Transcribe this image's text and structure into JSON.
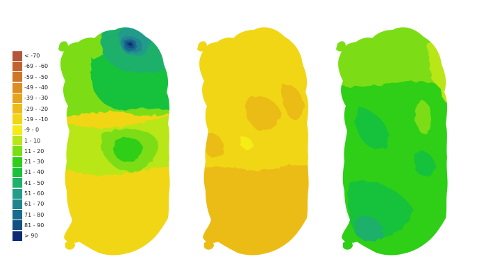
{
  "legend": {
    "items": [
      {
        "label": "< -70",
        "color": "#b5553a"
      },
      {
        "label": "-69 - -60",
        "color": "#c2622c"
      },
      {
        "label": "-59 - -50",
        "color": "#cf7628"
      },
      {
        "label": "-49 - -40",
        "color": "#dc8e22"
      },
      {
        "label": "-39 - -30",
        "color": "#e5a41d"
      },
      {
        "label": "-29 - -20",
        "color": "#ecbc19"
      },
      {
        "label": "-19 - -10",
        "color": "#f1d617"
      },
      {
        "label": "-9 - 0",
        "color": "#f6ec14"
      },
      {
        "label": "1 - 10",
        "color": "#b9e616"
      },
      {
        "label": "11 - 20",
        "color": "#7bdd13"
      },
      {
        "label": "21 - 30",
        "color": "#2fcf18"
      },
      {
        "label": "31 - 40",
        "color": "#19c23a"
      },
      {
        "label": "41 - 50",
        "color": "#1fb06a"
      },
      {
        "label": "51 - 60",
        "color": "#239c8a"
      },
      {
        "label": "61 - 70",
        "color": "#20858f"
      },
      {
        "label": "71 - 80",
        "color": "#176b8c"
      },
      {
        "label": "81 - 90",
        "color": "#125083"
      },
      {
        "label": "> 90",
        "color": "#0d2c75"
      }
    ]
  },
  "maps": [
    {
      "name": "map-left"
    },
    {
      "name": "map-center"
    },
    {
      "name": "map-right"
    }
  ]
}
